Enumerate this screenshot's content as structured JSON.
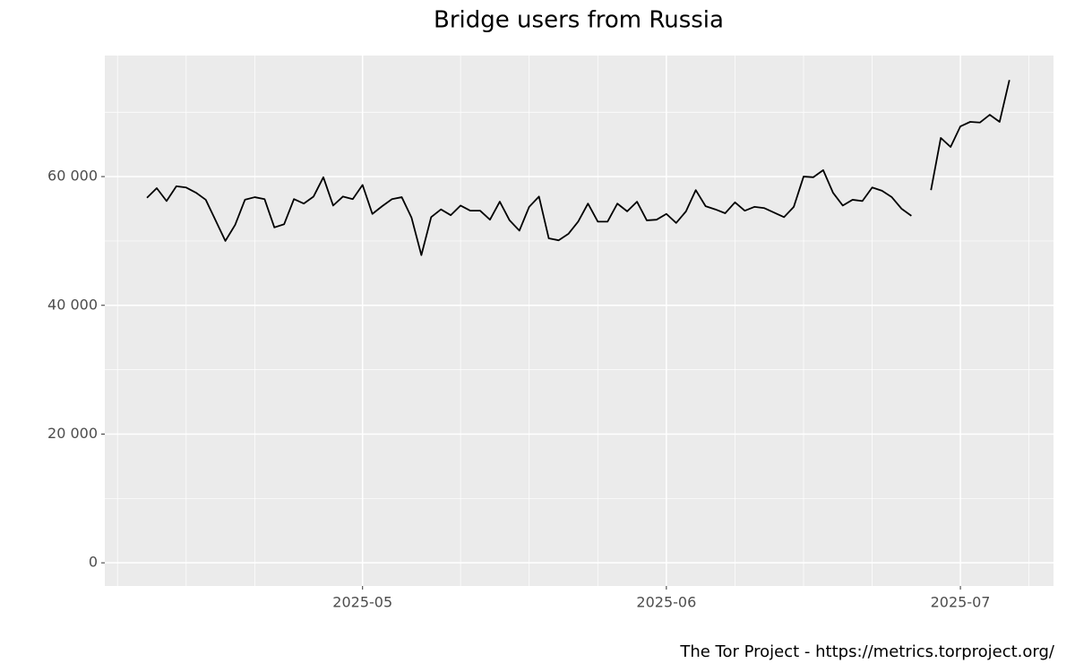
{
  "chart_data": {
    "type": "line",
    "title": "Bridge users from Russia",
    "caption": "The Tor Project - https://metrics.torproject.org/",
    "color": "#000000",
    "x": [
      -22,
      -21,
      -20,
      -19,
      -18,
      -17,
      -16,
      -15,
      -14,
      -13,
      -12,
      -11,
      -10,
      -9,
      -8,
      -7,
      -6,
      -5,
      -4,
      -3,
      -2,
      -1,
      0,
      1,
      2,
      3,
      4,
      5,
      6,
      7,
      8,
      9,
      10,
      11,
      12,
      13,
      14,
      15,
      16,
      17,
      18,
      19,
      20,
      21,
      22,
      23,
      24,
      25,
      26,
      27,
      28,
      29,
      30,
      31,
      32,
      33,
      34,
      35,
      36,
      37,
      38,
      39,
      40,
      41,
      42,
      43,
      44,
      45,
      46,
      47,
      48,
      49,
      50,
      51,
      52,
      53,
      54,
      55,
      56,
      57,
      58,
      59,
      60,
      61,
      62,
      63,
      64,
      65,
      66
    ],
    "values": [
      56700,
      58200,
      56200,
      58500,
      58300,
      57500,
      56400,
      53200,
      50000,
      52500,
      56400,
      56800,
      56500,
      52100,
      52600,
      56500,
      55800,
      56900,
      59900,
      55500,
      56900,
      56500,
      58700,
      54200,
      55400,
      56500,
      56800,
      53600,
      47800,
      53700,
      54900,
      54000,
      55500,
      54700,
      54700,
      53300,
      56100,
      53200,
      51600,
      55300,
      56900,
      50400,
      50100,
      51100,
      53000,
      55800,
      53000,
      53000,
      55800,
      54600,
      56100,
      53200,
      53300,
      54200,
      52800,
      54600,
      57900,
      55400,
      54900,
      54300,
      56000,
      54700,
      55300,
      55100,
      54400,
      53700,
      55300,
      60000,
      59900,
      61000,
      57500,
      55500,
      56400,
      56200,
      58300,
      57800,
      56800,
      55000,
      53900,
      null,
      57900,
      66000,
      64600,
      67800,
      68500,
      68400,
      69600,
      68500,
      75000
    ],
    "xlim": [
      -26.3,
      70.5
    ],
    "xticks": [
      {
        "value": 0,
        "label": "2025-05"
      },
      {
        "value": 31,
        "label": "2025-06"
      },
      {
        "value": 61,
        "label": "2025-07"
      }
    ],
    "x_minor_ticks": [
      -25,
      -18,
      -11,
      10,
      17,
      24,
      38,
      45,
      52,
      68
    ],
    "ylim": [
      -3600,
      78800
    ],
    "yticks": [
      0,
      {
        "value": 20000,
        "label": "20 000"
      },
      {
        "value": 40000,
        "label": "40 000"
      },
      {
        "value": 60000,
        "label": "60 000"
      }
    ],
    "y_minor_ticks": [
      10000,
      30000,
      50000,
      70000
    ],
    "grid": true
  }
}
